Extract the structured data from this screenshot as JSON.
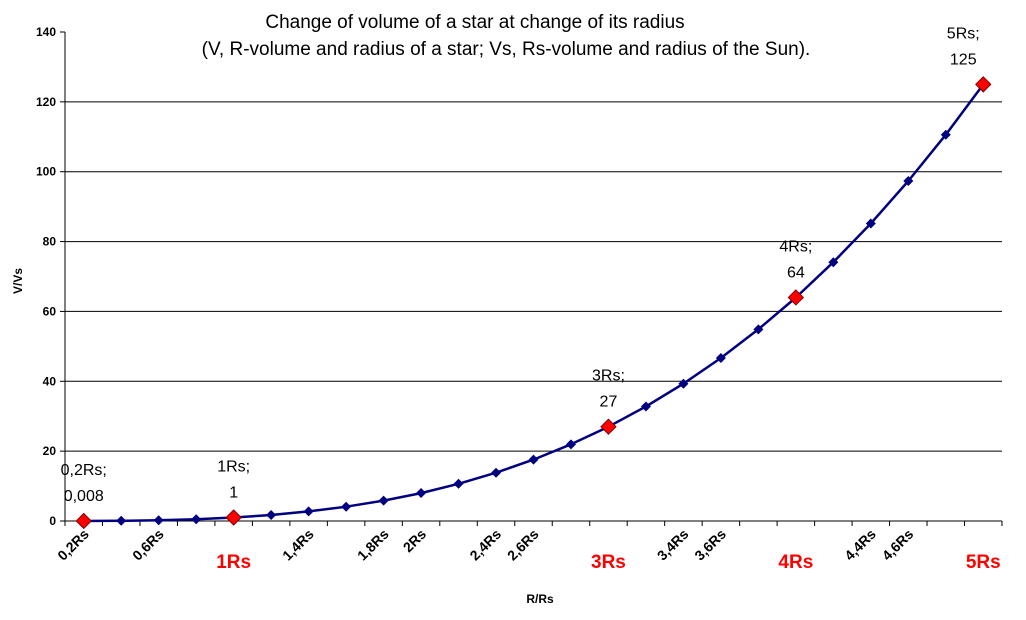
{
  "chart_data": {
    "type": "line",
    "title": "Change of volume of a star at change of its radius",
    "subtitle": "(V, R-volume and radius of a star; Vs, Rs-volume and radius of the Sun).",
    "xlabel": "R/Rs",
    "ylabel": "V/Vs",
    "ylim": [
      0,
      140
    ],
    "yticks": [
      "0",
      "20",
      "40",
      "60",
      "80",
      "100",
      "120",
      "140"
    ],
    "grid": true,
    "legend": "none",
    "colors": {
      "line": "#000080",
      "marker": "#000080",
      "highlight": "#ff0000",
      "highlight_edge": "#800000"
    },
    "x": [
      0.2,
      0.4,
      0.6,
      0.8,
      1.0,
      1.2,
      1.4,
      1.6,
      1.8,
      2.0,
      2.2,
      2.4,
      2.6,
      2.8,
      3.0,
      3.2,
      3.4,
      3.6,
      3.8,
      4.0,
      4.2,
      4.4,
      4.6,
      4.8,
      5.0
    ],
    "values": [
      0.008,
      0.064,
      0.216,
      0.512,
      1,
      1.728,
      2.744,
      4.096,
      5.832,
      8,
      10.648,
      13.824,
      17.576,
      21.952,
      27,
      32.768,
      39.304,
      46.656,
      54.872,
      64,
      74.088,
      85.184,
      97.336,
      110.592,
      125
    ],
    "x_ticks": [
      {
        "label": "0,2Rs",
        "x": 0.2,
        "highlight": false
      },
      {
        "label": "0,6Rs",
        "x": 0.6,
        "highlight": false
      },
      {
        "label": "1Rs",
        "x": 1.0,
        "highlight": true
      },
      {
        "label": "1,4Rs",
        "x": 1.4,
        "highlight": false
      },
      {
        "label": "1,8Rs",
        "x": 1.8,
        "highlight": false
      },
      {
        "label": "2Rs",
        "x": 2.0,
        "highlight": false
      },
      {
        "label": "2,4Rs",
        "x": 2.4,
        "highlight": false
      },
      {
        "label": "2,6Rs",
        "x": 2.6,
        "highlight": false
      },
      {
        "label": "3Rs",
        "x": 3.0,
        "highlight": true
      },
      {
        "label": "3,4Rs",
        "x": 3.4,
        "highlight": false
      },
      {
        "label": "3,6Rs",
        "x": 3.6,
        "highlight": false
      },
      {
        "label": "4Rs",
        "x": 4.0,
        "highlight": true
      },
      {
        "label": "4,4Rs",
        "x": 4.4,
        "highlight": false
      },
      {
        "label": "4,6Rs",
        "x": 4.6,
        "highlight": false
      },
      {
        "label": "5Rs",
        "x": 5.0,
        "highlight": true
      }
    ],
    "highlighted_points": [
      {
        "x": 0.2,
        "value": 0.008,
        "label_line1": "0,2Rs;",
        "label_line2": "0,008"
      },
      {
        "x": 1.0,
        "value": 1,
        "label_line1": "1Rs;",
        "label_line2": "1"
      },
      {
        "x": 3.0,
        "value": 27,
        "label_line1": "3Rs;",
        "label_line2": "27"
      },
      {
        "x": 4.0,
        "value": 64,
        "label_line1": "4Rs;",
        "label_line2": "64"
      },
      {
        "x": 5.0,
        "value": 125,
        "label_line1": "5Rs;",
        "label_line2": "125"
      }
    ]
  }
}
